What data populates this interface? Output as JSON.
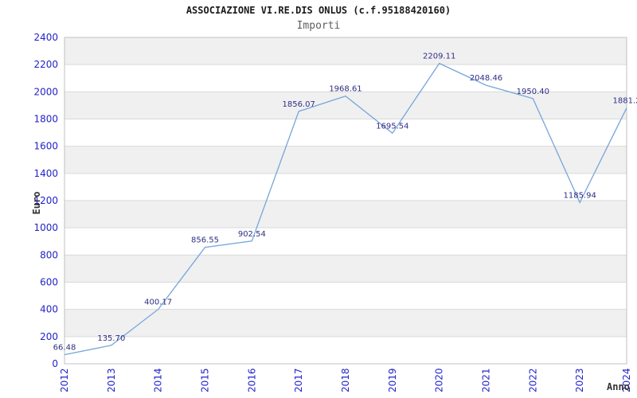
{
  "header": {
    "title": "ASSOCIAZIONE VI.RE.DIS ONLUS (c.f.95188420160)",
    "subtitle": "Importi"
  },
  "chart_data": {
    "type": "line",
    "title": "ASSOCIAZIONE VI.RE.DIS ONLUS (c.f.95188420160)",
    "subtitle": "Importi",
    "xlabel": "Anno",
    "ylabel": "Euro",
    "categories": [
      "2012",
      "2013",
      "2014",
      "2015",
      "2016",
      "2017",
      "2018",
      "2019",
      "2020",
      "2021",
      "2022",
      "2023",
      "2024"
    ],
    "values": [
      66.48,
      135.7,
      400.17,
      856.55,
      902.54,
      1856.07,
      1968.61,
      1695.54,
      2209.11,
      2048.46,
      1950.4,
      1185.94,
      1881.2
    ],
    "point_labels": [
      "66.48",
      "135.70",
      "400.17",
      "856.55",
      "902.54",
      "1856.07",
      "1968.61",
      "1695.54",
      "2209.11",
      "2048.46",
      "1950.40",
      "1185.94",
      "1881.2"
    ],
    "y_ticks": [
      0,
      200,
      400,
      600,
      800,
      1000,
      1200,
      1400,
      1600,
      1800,
      2000,
      2200,
      2400
    ],
    "ylim": [
      0,
      2400
    ],
    "grid": true,
    "banded_background": true,
    "legend": "none",
    "colors": {
      "line": "#76a5da",
      "tick_label": "#2222cc",
      "point_label": "#2e2e85",
      "band": "#f0f0f0",
      "grid": "#d9d9d9",
      "border": "#c0c0c0",
      "title": "#1a1a1a",
      "subtitle": "#606060",
      "axis_title": "#333333",
      "background": "#ffffff"
    }
  }
}
